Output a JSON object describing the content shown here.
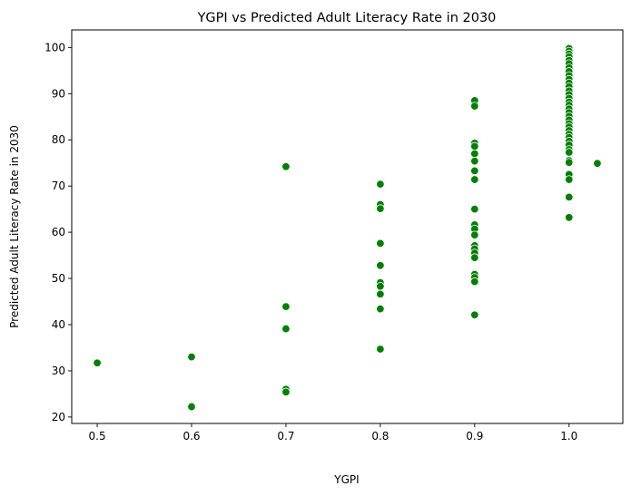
{
  "chart_data": {
    "type": "scatter",
    "title": "YGPI vs Predicted Adult Literacy Rate in 2030",
    "xlabel": "YGPI",
    "ylabel": "Predicted Adult Literacy Rate in 2030",
    "xlim": [
      0.473,
      1.057
    ],
    "ylim": [
      18.6,
      103.8
    ],
    "xticks": [
      0.5,
      0.6,
      0.7,
      0.8,
      0.9,
      1.0
    ],
    "xtick_labels": [
      "0.5",
      "0.6",
      "0.7",
      "0.8",
      "0.9",
      "1.0"
    ],
    "yticks": [
      20,
      30,
      40,
      50,
      60,
      70,
      80,
      90,
      100
    ],
    "ytick_labels": [
      "20",
      "30",
      "40",
      "50",
      "60",
      "70",
      "80",
      "90",
      "100"
    ],
    "grid": false,
    "marker_color": "#008000",
    "marker_edge_color": "#ffffff",
    "points": [
      [
        0.5,
        31.7
      ],
      [
        0.6,
        33.0
      ],
      [
        0.6,
        22.4
      ],
      [
        0.6,
        22.2
      ],
      [
        0.7,
        74.2
      ],
      [
        0.7,
        43.9
      ],
      [
        0.7,
        39.1
      ],
      [
        0.7,
        26.0
      ],
      [
        0.7,
        25.4
      ],
      [
        0.8,
        70.4
      ],
      [
        0.8,
        66.0
      ],
      [
        0.8,
        65.1
      ],
      [
        0.8,
        57.6
      ],
      [
        0.8,
        52.8
      ],
      [
        0.8,
        49.1
      ],
      [
        0.8,
        48.3
      ],
      [
        0.8,
        46.6
      ],
      [
        0.8,
        43.4
      ],
      [
        0.8,
        34.7
      ],
      [
        0.9,
        88.5
      ],
      [
        0.9,
        87.3
      ],
      [
        0.9,
        79.3
      ],
      [
        0.9,
        78.6
      ],
      [
        0.9,
        77.0
      ],
      [
        0.9,
        75.4
      ],
      [
        0.9,
        73.3
      ],
      [
        0.9,
        71.4
      ],
      [
        0.9,
        65.0
      ],
      [
        0.9,
        61.6
      ],
      [
        0.9,
        60.7
      ],
      [
        0.9,
        59.4
      ],
      [
        0.9,
        57.1
      ],
      [
        0.9,
        56.4
      ],
      [
        0.9,
        55.5
      ],
      [
        0.9,
        54.5
      ],
      [
        0.9,
        50.9
      ],
      [
        0.9,
        50.2
      ],
      [
        0.9,
        49.3
      ],
      [
        0.9,
        42.1
      ],
      [
        1.0,
        99.8
      ],
      [
        1.0,
        99.2
      ],
      [
        1.0,
        98.6
      ],
      [
        1.0,
        98.0
      ],
      [
        1.0,
        97.2
      ],
      [
        1.0,
        96.5
      ],
      [
        1.0,
        95.6
      ],
      [
        1.0,
        94.8
      ],
      [
        1.0,
        93.9
      ],
      [
        1.0,
        93.1
      ],
      [
        1.0,
        92.3
      ],
      [
        1.0,
        91.5
      ],
      [
        1.0,
        90.6
      ],
      [
        1.0,
        89.8
      ],
      [
        1.0,
        89.0
      ],
      [
        1.0,
        88.2
      ],
      [
        1.0,
        87.5
      ],
      [
        1.0,
        86.7
      ],
      [
        1.0,
        85.9
      ],
      [
        1.0,
        85.1
      ],
      [
        1.0,
        84.3
      ],
      [
        1.0,
        83.5
      ],
      [
        1.0,
        82.8
      ],
      [
        1.0,
        82.0
      ],
      [
        1.0,
        81.2
      ],
      [
        1.0,
        80.5
      ],
      [
        1.0,
        79.7
      ],
      [
        1.0,
        78.9
      ],
      [
        1.0,
        77.9
      ],
      [
        1.0,
        77.3
      ],
      [
        1.0,
        75.5
      ],
      [
        1.0,
        75.1
      ],
      [
        1.0,
        72.5
      ],
      [
        1.0,
        71.4
      ],
      [
        1.0,
        67.6
      ],
      [
        1.0,
        63.2
      ],
      [
        1.03,
        74.9
      ]
    ]
  }
}
